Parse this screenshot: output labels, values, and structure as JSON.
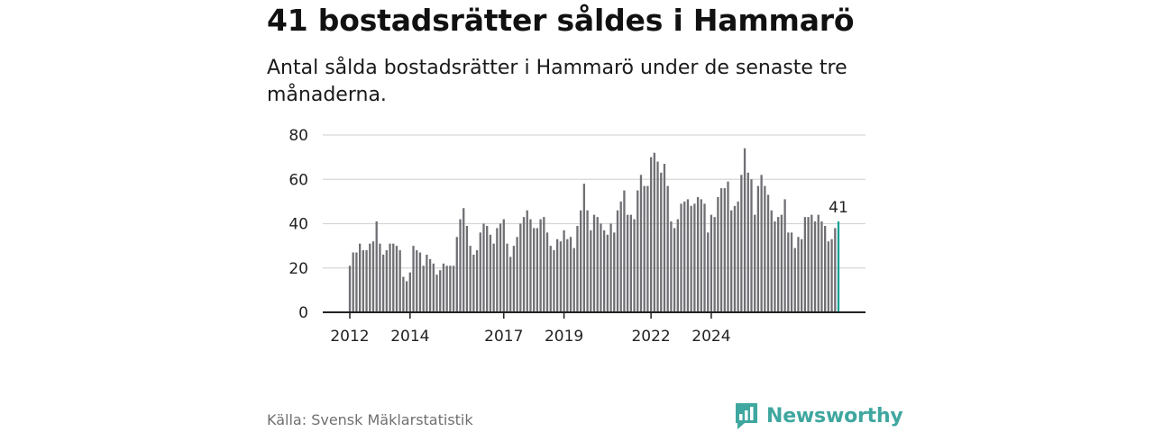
{
  "header": {
    "title": "41 bostadsrätter såldes i Hammarö",
    "subtitle": "Antal sålda bostadsrätter i Hammarö under de senaste tre månaderna."
  },
  "footer": {
    "source": "Källa: Svensk Mäklarstatistik",
    "brand": "Newsworthy"
  },
  "colors": {
    "bar": "#6f6f74",
    "highlight": "#1aa095",
    "grid": "#d6d6d6",
    "axis": "#222222",
    "brand": "#3fa79f"
  },
  "chart_data": {
    "type": "bar",
    "title": "41 bostadsrätter såldes i Hammarö",
    "ylim": [
      0,
      80
    ],
    "yticks": [
      0,
      20,
      40,
      60,
      80
    ],
    "xtick_labels": [
      "2012",
      "2014",
      "2017",
      "2019",
      "2022",
      "2024"
    ],
    "xtick_positions": [
      0,
      18,
      46,
      64,
      90,
      108
    ],
    "highlight_label": "41",
    "values": [
      21,
      27,
      27,
      31,
      28,
      28,
      31,
      32,
      41,
      31,
      26,
      28,
      31,
      31,
      30,
      28,
      16,
      14,
      18,
      30,
      28,
      27,
      21,
      26,
      24,
      22,
      17,
      19,
      22,
      21,
      21,
      21,
      34,
      42,
      47,
      39,
      30,
      26,
      28,
      36,
      40,
      39,
      35,
      31,
      38,
      40,
      42,
      31,
      25,
      30,
      34,
      40,
      43,
      46,
      42,
      38,
      38,
      42,
      43,
      36,
      30,
      28,
      33,
      32,
      37,
      33,
      34,
      29,
      39,
      46,
      58,
      46,
      37,
      44,
      43,
      40,
      37,
      35,
      40,
      36,
      46,
      50,
      55,
      44,
      44,
      42,
      55,
      62,
      57,
      57,
      70,
      72,
      68,
      63,
      67,
      57,
      41,
      38,
      42,
      49,
      50,
      51,
      48,
      49,
      52,
      51,
      49,
      36,
      44,
      43,
      52,
      56,
      56,
      59,
      46,
      48,
      50,
      62,
      74,
      63,
      60,
      44,
      57,
      62,
      57,
      53,
      46,
      41,
      43,
      44,
      51,
      36,
      36,
      29,
      34,
      33,
      43,
      43,
      44,
      41,
      44,
      41,
      39,
      32,
      33,
      38,
      41
    ]
  }
}
